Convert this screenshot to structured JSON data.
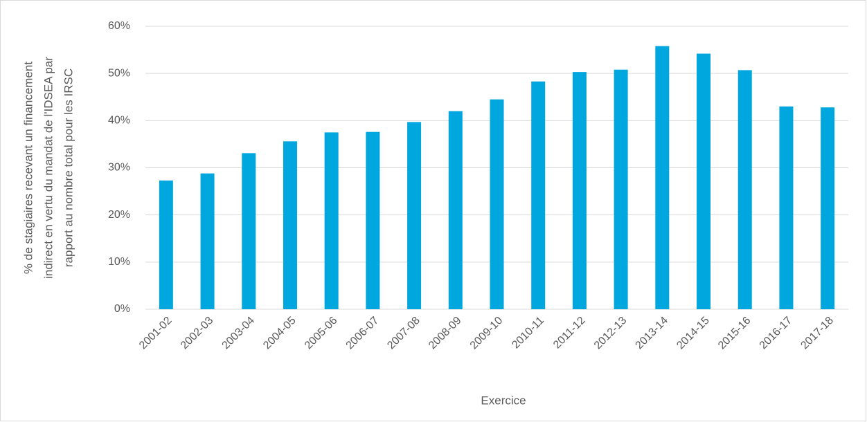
{
  "chart_data": {
    "type": "bar",
    "ylabel": [
      "% de stagiaires recevant un financement",
      "indirect en vertu du mandat de l'IDSEA par",
      "rapport au nombre total pour les IRSC"
    ],
    "xlabel": "Exercice",
    "categories": [
      "2001-02",
      "2002-03",
      "2003-04",
      "2004-05",
      "2005-06",
      "2006-07",
      "2007-08",
      "2008-09",
      "2009-10",
      "2010-11",
      "2011-12",
      "2012-13",
      "2013-14",
      "2014-15",
      "2015-16",
      "2016-17",
      "2017-18"
    ],
    "values": [
      27.3,
      28.8,
      33.1,
      35.6,
      37.5,
      37.6,
      39.7,
      42.0,
      44.5,
      48.3,
      50.3,
      50.8,
      55.8,
      54.2,
      50.7,
      43.0,
      42.8
    ],
    "color": "#00a6de",
    "ylim": [
      0,
      60
    ],
    "yticks": [
      {
        "value": 0,
        "label": "0%"
      },
      {
        "value": 10,
        "label": "10%"
      },
      {
        "value": 20,
        "label": "20%"
      },
      {
        "value": 30,
        "label": "30%"
      },
      {
        "value": 40,
        "label": "40%"
      },
      {
        "value": 50,
        "label": "50%"
      },
      {
        "value": 60,
        "label": "60%"
      }
    ],
    "grid": true
  }
}
